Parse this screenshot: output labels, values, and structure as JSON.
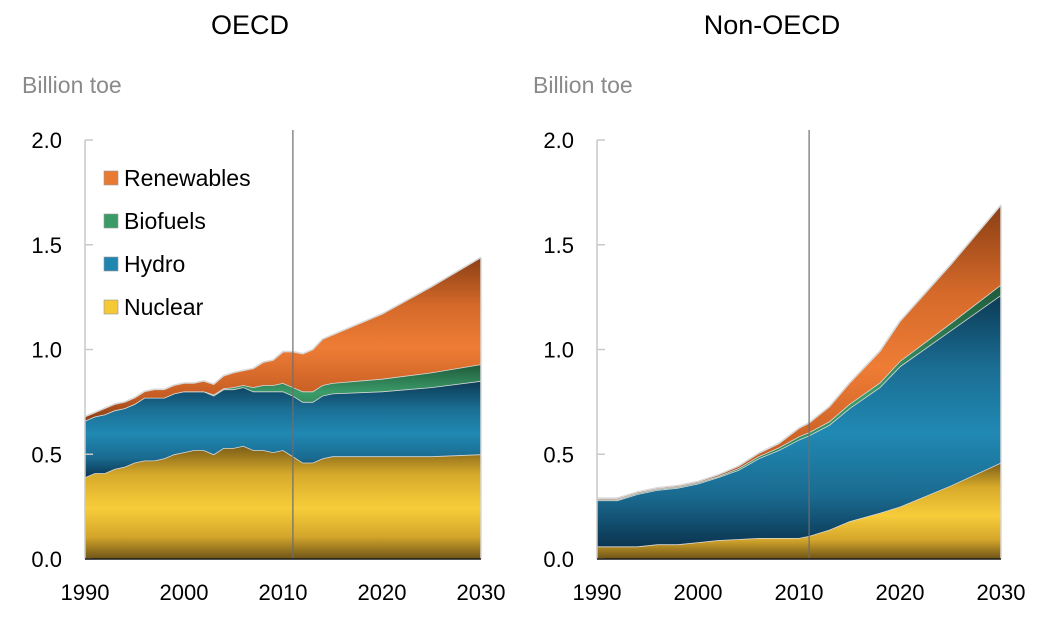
{
  "chart_data": [
    {
      "type": "area",
      "title": "OECD",
      "ylabel": "Billion toe",
      "xlabel": "",
      "ylim": [
        0,
        2.0
      ],
      "xlim": [
        1990,
        2030
      ],
      "yticks": [
        "0.0",
        "0.5",
        "1.0",
        "1.5",
        "2.0"
      ],
      "ytick_values": [
        0,
        0.5,
        1.0,
        1.5,
        2.0
      ],
      "xticks": [
        "1990",
        "2000",
        "2010",
        "2020",
        "2030"
      ],
      "xtick_values": [
        1990,
        2000,
        2010,
        2020,
        2030
      ],
      "divider_year": 2011,
      "stacked": true,
      "legend": {
        "position": "top-left",
        "entries": [
          "Renewables",
          "Biofuels",
          "Hydro",
          "Nuclear"
        ]
      },
      "x": [
        1990,
        1991,
        1992,
        1993,
        1994,
        1995,
        1996,
        1997,
        1998,
        1999,
        2000,
        2001,
        2002,
        2003,
        2004,
        2005,
        2006,
        2007,
        2008,
        2009,
        2010,
        2011,
        2012,
        2013,
        2014,
        2015,
        2020,
        2025,
        2030
      ],
      "series": [
        {
          "name": "Nuclear",
          "color": "#f4c933",
          "values": [
            0.39,
            0.41,
            0.41,
            0.43,
            0.44,
            0.46,
            0.47,
            0.47,
            0.48,
            0.5,
            0.51,
            0.52,
            0.52,
            0.5,
            0.53,
            0.53,
            0.54,
            0.52,
            0.52,
            0.51,
            0.52,
            0.49,
            0.46,
            0.46,
            0.48,
            0.49,
            0.49,
            0.49,
            0.5
          ]
        },
        {
          "name": "Hydro",
          "color": "#1f86b0",
          "values": [
            0.27,
            0.27,
            0.28,
            0.28,
            0.28,
            0.28,
            0.3,
            0.3,
            0.29,
            0.29,
            0.29,
            0.28,
            0.28,
            0.28,
            0.28,
            0.28,
            0.28,
            0.28,
            0.28,
            0.29,
            0.28,
            0.29,
            0.29,
            0.29,
            0.3,
            0.3,
            0.31,
            0.33,
            0.35
          ]
        },
        {
          "name": "Biofuels",
          "color": "#3a9a68",
          "values": [
            0.0,
            0.0,
            0.0,
            0.0,
            0.0,
            0.0,
            0.0,
            0.0,
            0.0,
            0.0,
            0.0,
            0.0,
            0.0,
            0.005,
            0.005,
            0.01,
            0.01,
            0.02,
            0.03,
            0.03,
            0.04,
            0.04,
            0.05,
            0.05,
            0.05,
            0.05,
            0.06,
            0.07,
            0.08
          ]
        },
        {
          "name": "Renewables",
          "color": "#e97a33",
          "values": [
            0.02,
            0.02,
            0.03,
            0.03,
            0.03,
            0.03,
            0.03,
            0.04,
            0.04,
            0.04,
            0.04,
            0.04,
            0.05,
            0.05,
            0.06,
            0.07,
            0.07,
            0.09,
            0.11,
            0.12,
            0.15,
            0.17,
            0.18,
            0.2,
            0.22,
            0.23,
            0.31,
            0.41,
            0.51
          ]
        }
      ]
    },
    {
      "type": "area",
      "title": "Non-OECD",
      "ylabel": "Billion toe",
      "xlabel": "",
      "ylim": [
        0,
        2.0
      ],
      "xlim": [
        1990,
        2030
      ],
      "yticks": [
        "0.0",
        "0.5",
        "1.0",
        "1.5",
        "2.0"
      ],
      "ytick_values": [
        0,
        0.5,
        1.0,
        1.5,
        2.0
      ],
      "xticks": [
        "1990",
        "2000",
        "2010",
        "2020",
        "2030"
      ],
      "xtick_values": [
        1990,
        2000,
        2010,
        2020,
        2030
      ],
      "divider_year": 2011,
      "stacked": true,
      "x": [
        1990,
        1992,
        1994,
        1996,
        1998,
        2000,
        2002,
        2004,
        2006,
        2008,
        2010,
        2011,
        2013,
        2015,
        2018,
        2020,
        2025,
        2030
      ],
      "series": [
        {
          "name": "Nuclear",
          "color": "#f4c933",
          "values": [
            0.06,
            0.06,
            0.06,
            0.07,
            0.07,
            0.08,
            0.09,
            0.095,
            0.1,
            0.1,
            0.1,
            0.11,
            0.14,
            0.18,
            0.22,
            0.25,
            0.35,
            0.46
          ]
        },
        {
          "name": "Hydro",
          "color": "#1f86b0",
          "values": [
            0.22,
            0.22,
            0.25,
            0.26,
            0.27,
            0.28,
            0.3,
            0.33,
            0.38,
            0.42,
            0.47,
            0.48,
            0.5,
            0.54,
            0.6,
            0.67,
            0.74,
            0.8
          ]
        },
        {
          "name": "Biofuels",
          "color": "#3a9a68",
          "values": [
            0.005,
            0.005,
            0.005,
            0.005,
            0.005,
            0.005,
            0.005,
            0.008,
            0.01,
            0.012,
            0.015,
            0.015,
            0.017,
            0.02,
            0.022,
            0.025,
            0.035,
            0.05
          ]
        },
        {
          "name": "Renewables",
          "color": "#e97a33",
          "values": [
            0.005,
            0.005,
            0.005,
            0.005,
            0.005,
            0.005,
            0.007,
            0.01,
            0.015,
            0.02,
            0.04,
            0.045,
            0.07,
            0.1,
            0.15,
            0.19,
            0.28,
            0.38
          ]
        }
      ]
    }
  ]
}
